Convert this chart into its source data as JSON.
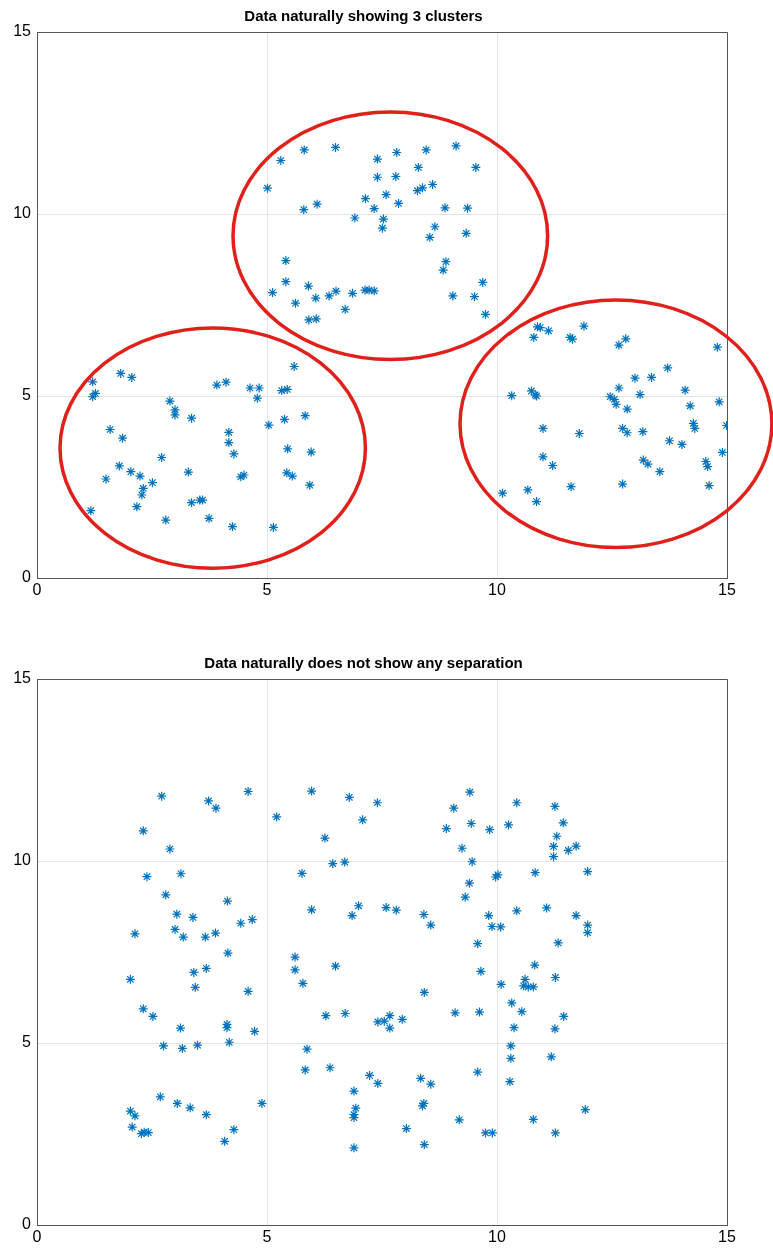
{
  "chart_data": [
    {
      "type": "scatter",
      "title": "Data naturally showing 3 clusters",
      "color": "#0072bd",
      "marker": "cross",
      "grid": true,
      "xlim": [
        0,
        15
      ],
      "ylim": [
        0,
        15
      ],
      "xticks": [
        0,
        5,
        10,
        15
      ],
      "yticks": [
        0,
        5,
        10,
        15
      ],
      "x": [
        5.3,
        5.81,
        6.49,
        7.4,
        7.82,
        7.4,
        7.8,
        5.01,
        7.14,
        7.59,
        7.86,
        7.33,
        5.8,
        6.09,
        6.91,
        7.53,
        7.51,
        5.41,
        5.41,
        5.12,
        5.9,
        5.62,
        6.06,
        6.35,
        6.5,
        6.86,
        6.7,
        7.13,
        7.22,
        7.33,
        5.91,
        6.07,
        8.46,
        9.11,
        8.29,
        9.54,
        8.27,
        8.38,
        8.6,
        8.87,
        9.36,
        8.65,
        8.54,
        9.33,
        8.89,
        8.83,
        9.69,
        9.04,
        9.51,
        9.75,
        1.21,
        1.27,
        1.21,
        1.82,
        2.06,
        5.59,
        3.91,
        4.11,
        4.63,
        4.83,
        4.79,
        5.32,
        5.44,
        2.89,
        3.0,
        3.0,
        3.36,
        5.04,
        5.38,
        5.83,
        1.59,
        1.86,
        4.17,
        4.17,
        4.28,
        5.45,
        5.96,
        2.71,
        1.79,
        2.04,
        2.24,
        2.51,
        2.31,
        2.28,
        2.17,
        1.5,
        3.29,
        4.43,
        4.5,
        5.43,
        5.55,
        5.93,
        3.36,
        3.54,
        3.6,
        1.17,
        2.8,
        3.74,
        4.25,
        5.14,
        10.88,
        10.94,
        11.12,
        10.8,
        11.59,
        11.64,
        11.89,
        12.8,
        12.65,
        14.79,
        13.71,
        13.0,
        13.36,
        12.65,
        14.09,
        10.32,
        10.75,
        10.83,
        10.86,
        12.46,
        12.55,
        12.59,
        12.83,
        13.11,
        14.83,
        14.2,
        11.0,
        11.79,
        12.73,
        12.83,
        13.17,
        14.27,
        14.3,
        14.99,
        13.75,
        14.02,
        14.9,
        11.0,
        11.21,
        13.18,
        13.28,
        13.54,
        14.54,
        14.58,
        10.12,
        10.67,
        10.86,
        11.61,
        12.73,
        14.61
      ],
      "values": [
        11.47,
        11.76,
        11.83,
        11.51,
        11.69,
        11.01,
        11.03,
        10.71,
        10.42,
        10.53,
        10.29,
        10.15,
        10.12,
        10.27,
        9.89,
        9.86,
        9.61,
        8.72,
        8.14,
        7.84,
        8.02,
        7.55,
        7.69,
        7.75,
        7.88,
        7.82,
        7.38,
        7.91,
        7.91,
        7.89,
        7.09,
        7.12,
        11.76,
        11.87,
        11.28,
        11.28,
        10.64,
        10.72,
        10.81,
        10.17,
        10.16,
        9.65,
        9.36,
        9.47,
        8.69,
        8.46,
        8.12,
        7.75,
        7.73,
        7.24,
        5.39,
        5.07,
        4.98,
        5.62,
        5.51,
        5.81,
        5.3,
        5.38,
        5.22,
        5.22,
        4.94,
        5.15,
        5.18,
        4.86,
        4.62,
        4.48,
        4.39,
        4.2,
        4.36,
        4.46,
        4.08,
        3.84,
        4.0,
        3.72,
        3.41,
        3.55,
        3.46,
        3.31,
        3.08,
        2.92,
        2.8,
        2.62,
        2.46,
        2.28,
        1.96,
        2.72,
        2.91,
        2.78,
        2.83,
        2.89,
        2.8,
        2.55,
        2.07,
        2.14,
        2.14,
        1.85,
        1.59,
        1.64,
        1.41,
        1.39,
        6.9,
        6.88,
        6.79,
        6.61,
        6.61,
        6.56,
        6.92,
        6.57,
        6.4,
        6.34,
        5.77,
        5.49,
        5.51,
        5.22,
        5.16,
        5.01,
        5.14,
        5.03,
        5.0,
        4.98,
        4.91,
        4.77,
        4.64,
        5.04,
        4.84,
        4.73,
        4.11,
        3.97,
        4.11,
        3.99,
        4.02,
        4.25,
        4.11,
        4.19,
        3.77,
        3.67,
        3.45,
        3.33,
        3.09,
        3.24,
        3.13,
        2.92,
        3.2,
        3.06,
        2.33,
        2.42,
        2.1,
        2.51,
        2.58,
        2.54
      ]
    },
    {
      "type": "scatter",
      "title": "Data naturally does not show any separation",
      "color": "#0072bd",
      "marker": "cross",
      "grid": true,
      "xlim": [
        0,
        15
      ],
      "ylim": [
        0,
        15
      ],
      "xticks": [
        0,
        5,
        10,
        15
      ],
      "yticks": [
        0,
        5,
        10,
        15
      ],
      "x": [
        2.71,
        3.73,
        3.89,
        4.59,
        5.21,
        2.31,
        2.89,
        2.39,
        3.13,
        2.8,
        4.14,
        3.04,
        3.39,
        4.43,
        4.68,
        2.13,
        3.0,
        3.18,
        3.66,
        3.88,
        4.15,
        2.03,
        3.41,
        3.68,
        3.44,
        4.59,
        2.31,
        2.52,
        3.12,
        4.13,
        4.13,
        4.73,
        2.75,
        3.16,
        3.49,
        4.18,
        2.68,
        3.05,
        3.33,
        3.68,
        4.89,
        2.03,
        2.13,
        2.07,
        2.27,
        2.33,
        2.42,
        4.28,
        4.08,
        5.97,
        6.79,
        7.4,
        7.08,
        6.26,
        6.43,
        6.69,
        5.76,
        5.97,
        6.99,
        6.85,
        7.59,
        7.81,
        8.41,
        8.56,
        5.61,
        5.61,
        5.78,
        6.49,
        8.42,
        6.28,
        6.7,
        7.41,
        7.55,
        7.67,
        7.67,
        7.94,
        5.87,
        5.83,
        6.37,
        7.23,
        7.41,
        6.89,
        6.93,
        6.89,
        6.89,
        6.89,
        8.03,
        8.34,
        8.56,
        8.41,
        8.38,
        8.42,
        8.9,
        9.06,
        9.24,
        9.41,
        9.44,
        9.46,
        9.4,
        9.31,
        9.84,
        10.25,
        10.43,
        10.02,
        9.97,
        9.82,
        9.89,
        10.08,
        10.43,
        9.58,
        9.65,
        10.09,
        9.09,
        9.62,
        10.32,
        10.37,
        10.3,
        10.3,
        10.28,
        9.58,
        9.18,
        9.75,
        9.9,
        10.54,
        11.26,
        11.44,
        11.3,
        11.23,
        11.23,
        11.55,
        11.72,
        10.83,
        11.97,
        11.08,
        11.72,
        11.97,
        11.97,
        11.33,
        10.82,
        11.27,
        10.61,
        10.58,
        10.68,
        10.79,
        11.45,
        11.26,
        11.18,
        11.92,
        10.79,
        11.27
      ],
      "values": [
        11.78,
        11.65,
        11.45,
        11.91,
        11.21,
        10.83,
        10.33,
        9.57,
        9.65,
        9.07,
        8.9,
        8.54,
        8.45,
        8.29,
        8.39,
        8.0,
        8.12,
        7.91,
        7.91,
        8.02,
        7.47,
        6.75,
        6.94,
        7.05,
        6.53,
        6.42,
        5.94,
        5.73,
        5.41,
        5.51,
        5.42,
        5.32,
        4.92,
        4.85,
        4.94,
        5.02,
        3.52,
        3.34,
        3.22,
        3.03,
        3.34,
        3.13,
        3.0,
        2.69,
        2.51,
        2.55,
        2.54,
        2.62,
        2.3,
        11.92,
        11.75,
        11.6,
        11.13,
        10.63,
        9.93,
        9.97,
        9.66,
        8.66,
        8.77,
        8.5,
        8.72,
        8.65,
        8.53,
        8.24,
        7.36,
        7.01,
        6.64,
        7.11,
        6.39,
        5.75,
        5.81,
        5.58,
        5.6,
        5.75,
        5.41,
        5.65,
        4.83,
        4.26,
        4.32,
        4.11,
        3.89,
        3.68,
        3.21,
        3.03,
        2.95,
        2.12,
        2.65,
        4.03,
        3.87,
        3.34,
        3.27,
        2.21,
        10.89,
        11.45,
        10.35,
        11.89,
        11.03,
        9.98,
        9.39,
        9.01,
        10.86,
        10.99,
        11.6,
        9.62,
        9.56,
        8.5,
        8.2,
        8.19,
        8.63,
        7.73,
        6.97,
        6.61,
        5.83,
        5.85,
        6.1,
        5.42,
        4.92,
        4.58,
        3.94,
        4.2,
        2.89,
        2.53,
        2.53,
        5.86,
        11.5,
        11.05,
        10.68,
        10.4,
        10.12,
        10.29,
        10.41,
        9.68,
        9.71,
        8.71,
        8.5,
        8.24,
        8.03,
        7.75,
        7.14,
        6.8,
        6.75,
        6.57,
        6.54,
        6.54,
        5.73,
        5.39,
        4.62,
        3.17,
        2.9,
        2.53
      ]
    }
  ]
}
